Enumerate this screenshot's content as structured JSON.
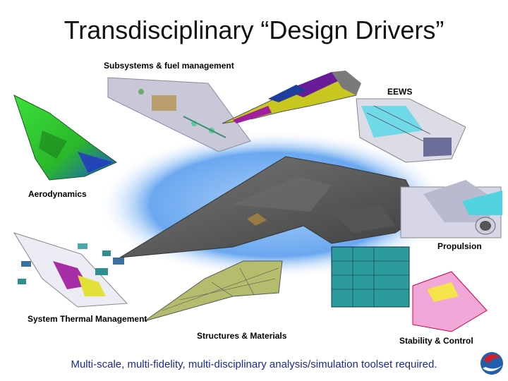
{
  "slide": {
    "title": "Transdisciplinary “Design Drivers”",
    "footer": "Multi-scale, multi-fidelity, multi-disciplinary analysis/simulation toolset required.",
    "logo_icon": "swoosh-logo-icon"
  },
  "disciplines": [
    {
      "key": "subsystems",
      "label": "Subsystems & fuel management"
    },
    {
      "key": "eews",
      "label": "EEWS"
    },
    {
      "key": "aerodynamics",
      "label": "Aerodynamics"
    },
    {
      "key": "propulsion",
      "label": "Propulsion"
    },
    {
      "key": "thermal",
      "label": "System Thermal Management"
    },
    {
      "key": "structures",
      "label": "Structures & Materials"
    },
    {
      "key": "stability",
      "label": "Stability & Control"
    }
  ],
  "colors": {
    "title": "#111111",
    "footer_text": "#1b2a8f",
    "glow": "#6aa8f0",
    "aircraft": "#5c5c5c",
    "aero_mesh": "#2fcf2f",
    "structure_mesh": "#b4bd6e"
  }
}
